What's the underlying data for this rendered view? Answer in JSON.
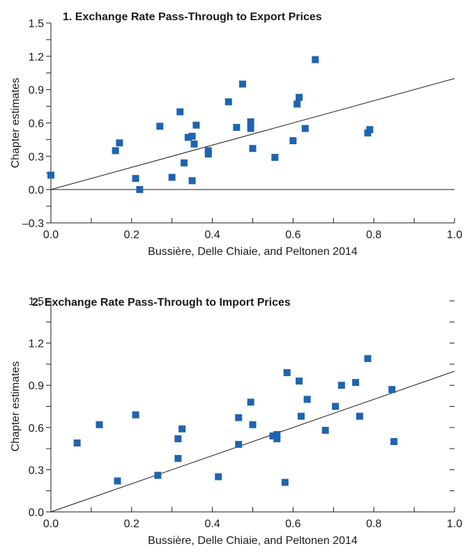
{
  "chart_data": [
    {
      "type": "scatter",
      "title": "1. Exchange Rate Pass-Through to Export Prices",
      "xlabel": "Bussière, Delle Chiaie, and Peltonen 2014",
      "ylabel": "Chapter estimates",
      "xlim": [
        0.0,
        1.0
      ],
      "ylim": [
        -0.3,
        1.5
      ],
      "xticks": [
        "0.0",
        "0.2",
        "0.4",
        "0.6",
        "0.8",
        "1.0"
      ],
      "yticks": [
        "–0.3",
        "0.0",
        "0.3",
        "0.6",
        "0.9",
        "1.2",
        "1.5"
      ],
      "reference_lines": [
        "45-degree line",
        "zero line"
      ],
      "marker_color": "#1f64b0",
      "points": [
        {
          "x": 0.0,
          "y": 0.13
        },
        {
          "x": 0.16,
          "y": 0.35
        },
        {
          "x": 0.17,
          "y": 0.42
        },
        {
          "x": 0.21,
          "y": 0.1
        },
        {
          "x": 0.22,
          "y": 0.0
        },
        {
          "x": 0.27,
          "y": 0.57
        },
        {
          "x": 0.3,
          "y": 0.11
        },
        {
          "x": 0.32,
          "y": 0.7
        },
        {
          "x": 0.33,
          "y": 0.24
        },
        {
          "x": 0.34,
          "y": 0.47
        },
        {
          "x": 0.35,
          "y": 0.48
        },
        {
          "x": 0.355,
          "y": 0.41
        },
        {
          "x": 0.35,
          "y": 0.08
        },
        {
          "x": 0.36,
          "y": 0.58
        },
        {
          "x": 0.39,
          "y": 0.35
        },
        {
          "x": 0.39,
          "y": 0.32
        },
        {
          "x": 0.44,
          "y": 0.79
        },
        {
          "x": 0.46,
          "y": 0.56
        },
        {
          "x": 0.475,
          "y": 0.95
        },
        {
          "x": 0.495,
          "y": 0.61
        },
        {
          "x": 0.495,
          "y": 0.55
        },
        {
          "x": 0.5,
          "y": 0.37
        },
        {
          "x": 0.555,
          "y": 0.29
        },
        {
          "x": 0.6,
          "y": 0.44
        },
        {
          "x": 0.61,
          "y": 0.77
        },
        {
          "x": 0.615,
          "y": 0.83
        },
        {
          "x": 0.63,
          "y": 0.55
        },
        {
          "x": 0.655,
          "y": 1.17
        },
        {
          "x": 0.785,
          "y": 0.51
        },
        {
          "x": 0.79,
          "y": 0.54
        }
      ]
    },
    {
      "type": "scatter",
      "title": "2. Exchange Rate Pass-Through to Import Prices",
      "xlabel": "Bussière, Delle Chiaie, and Peltonen 2014",
      "ylabel": "Chapter estimates",
      "xlim": [
        0.0,
        1.0
      ],
      "ylim": [
        0.0,
        1.5
      ],
      "xticks": [
        "0.0",
        "0.2",
        "0.4",
        "0.6",
        "0.8",
        "1.0"
      ],
      "yticks": [
        "0.0",
        "0.3",
        "0.6",
        "0.9",
        "1.2",
        "1.5"
      ],
      "reference_lines": [
        "45-degree line"
      ],
      "marker_color": "#1f64b0",
      "points": [
        {
          "x": 0.065,
          "y": 0.49
        },
        {
          "x": 0.12,
          "y": 0.62
        },
        {
          "x": 0.165,
          "y": 0.22
        },
        {
          "x": 0.21,
          "y": 0.69
        },
        {
          "x": 0.265,
          "y": 0.26
        },
        {
          "x": 0.315,
          "y": 0.52
        },
        {
          "x": 0.315,
          "y": 0.38
        },
        {
          "x": 0.325,
          "y": 0.59
        },
        {
          "x": 0.415,
          "y": 0.25
        },
        {
          "x": 0.465,
          "y": 0.48
        },
        {
          "x": 0.465,
          "y": 0.67
        },
        {
          "x": 0.495,
          "y": 0.78
        },
        {
          "x": 0.5,
          "y": 0.62
        },
        {
          "x": 0.55,
          "y": 0.54
        },
        {
          "x": 0.56,
          "y": 0.55
        },
        {
          "x": 0.56,
          "y": 0.52
        },
        {
          "x": 0.58,
          "y": 0.21
        },
        {
          "x": 0.585,
          "y": 0.99
        },
        {
          "x": 0.615,
          "y": 0.93
        },
        {
          "x": 0.62,
          "y": 0.68
        },
        {
          "x": 0.635,
          "y": 0.8
        },
        {
          "x": 0.68,
          "y": 0.58
        },
        {
          "x": 0.705,
          "y": 0.75
        },
        {
          "x": 0.72,
          "y": 0.9
        },
        {
          "x": 0.755,
          "y": 0.92
        },
        {
          "x": 0.765,
          "y": 0.68
        },
        {
          "x": 0.785,
          "y": 1.09
        },
        {
          "x": 0.845,
          "y": 0.87
        },
        {
          "x": 0.85,
          "y": 0.5
        }
      ]
    }
  ]
}
